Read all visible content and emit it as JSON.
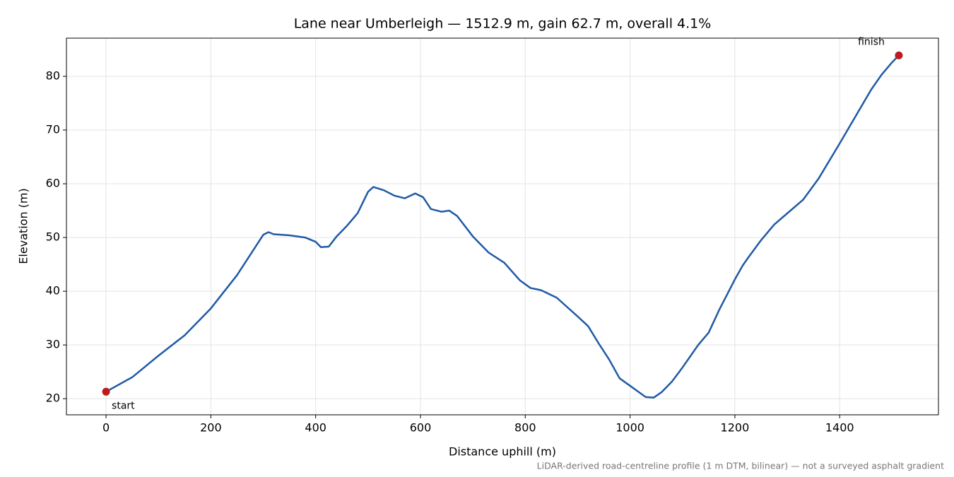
{
  "chart_data": {
    "type": "line",
    "title": "Lane near Umberleigh — 1512.9 m, gain 62.7 m, overall 4.1%",
    "x_label": "Distance uphill (m)",
    "y_label": "Elevation (m)",
    "footnote": "LiDAR-derived road-centreline profile (1 m DTM, bilinear) — not a surveyed asphalt gradient",
    "annotations": {
      "start": "start",
      "finish": "finish"
    },
    "x": [
      0,
      50,
      100,
      150,
      200,
      250,
      300,
      310,
      320,
      350,
      380,
      400,
      410,
      425,
      440,
      460,
      480,
      500,
      510,
      530,
      550,
      570,
      590,
      605,
      620,
      640,
      655,
      670,
      700,
      730,
      760,
      790,
      810,
      830,
      860,
      900,
      920,
      940,
      960,
      980,
      1000,
      1020,
      1030,
      1045,
      1060,
      1080,
      1100,
      1130,
      1150,
      1170,
      1200,
      1215,
      1225,
      1250,
      1275,
      1300,
      1330,
      1360,
      1400,
      1430,
      1460,
      1480,
      1500,
      1512.9
    ],
    "values": [
      21.3,
      24.0,
      28.0,
      31.8,
      36.8,
      43.0,
      50.5,
      51.0,
      50.6,
      50.4,
      50.0,
      49.2,
      48.2,
      48.3,
      50.2,
      52.2,
      54.5,
      58.5,
      59.4,
      58.8,
      57.8,
      57.3,
      58.2,
      57.5,
      55.3,
      54.8,
      55.0,
      54.0,
      50.2,
      47.2,
      45.3,
      42.0,
      40.6,
      40.2,
      38.8,
      35.3,
      33.5,
      30.3,
      27.3,
      23.8,
      22.4,
      21.0,
      20.3,
      20.2,
      21.2,
      23.2,
      25.8,
      30.0,
      32.3,
      36.5,
      42.2,
      44.8,
      46.2,
      49.5,
      52.4,
      54.5,
      57.0,
      61.0,
      67.5,
      72.5,
      77.5,
      80.3,
      82.6,
      83.9
    ],
    "color": "#1f5aa6",
    "marker_color": "#c0181f",
    "xlim": [
      -75.6,
      1588.5
    ],
    "ylim": [
      17.0,
      87.1
    ],
    "xticks": [
      0,
      200,
      400,
      600,
      800,
      1000,
      1200,
      1400
    ],
    "yticks": [
      20,
      30,
      40,
      50,
      60,
      70,
      80
    ],
    "grid": true
  }
}
